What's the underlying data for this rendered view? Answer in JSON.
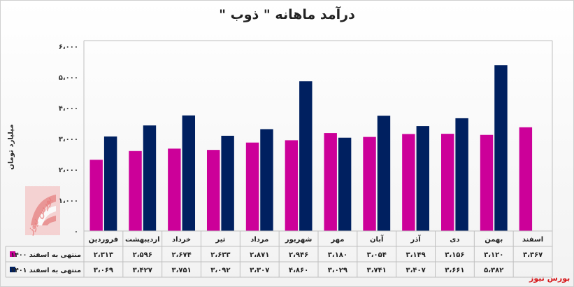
{
  "chart_data": {
    "type": "bar",
    "title": "درآمد ماهانه \" ذوب \"",
    "ylabel": "میلیارد تومان",
    "ylim": [
      0,
      6000
    ],
    "yticks": [
      "۰",
      "۱،۰۰۰",
      "۲،۰۰۰",
      "۳،۰۰۰",
      "۴،۰۰۰",
      "۵،۰۰۰",
      "۶،۰۰۰"
    ],
    "ytick_values": [
      0,
      1000,
      2000,
      3000,
      4000,
      5000,
      6000
    ],
    "grid": false,
    "legend": "table-left",
    "categories": [
      "فروردین",
      "اردیبهشت",
      "خرداد",
      "تیر",
      "مرداد",
      "شهریور",
      "مهر",
      "آبان",
      "آذر",
      "دی",
      "بهمن",
      "اسفند"
    ],
    "series": [
      {
        "name": "منتهی به اسفند ۱۴۰۰",
        "color": "#cc0099",
        "values": [
          2313,
          2596,
          2674,
          2633,
          2871,
          2946,
          3180,
          3054,
          3149,
          3156,
          3120,
          3367
        ],
        "labels": [
          "۲،۳۱۳",
          "۲،۵۹۶",
          "۲،۶۷۴",
          "۲،۶۳۳",
          "۲،۸۷۱",
          "۲،۹۴۶",
          "۳،۱۸۰",
          "۳،۰۵۴",
          "۳،۱۴۹",
          "۳،۱۵۶",
          "۳،۱۲۰",
          "۳،۳۶۷"
        ]
      },
      {
        "name": "منتهی به اسفند ۱۴۰۱",
        "color": "#002060",
        "values": [
          3069,
          3427,
          3751,
          3092,
          3307,
          4860,
          3029,
          3741,
          3407,
          3661,
          5382,
          null
        ],
        "labels": [
          "۳،۰۶۹",
          "۳،۴۲۷",
          "۳،۷۵۱",
          "۳،۰۹۲",
          "۳،۳۰۷",
          "۴،۸۶۰",
          "۳،۰۲۹",
          "۳،۷۴۱",
          "۳،۴۰۷",
          "۳،۶۶۱",
          "۵،۳۸۲",
          ""
        ]
      }
    ]
  },
  "source": "بورس نیوز",
  "watermark": "بورس نیوز"
}
